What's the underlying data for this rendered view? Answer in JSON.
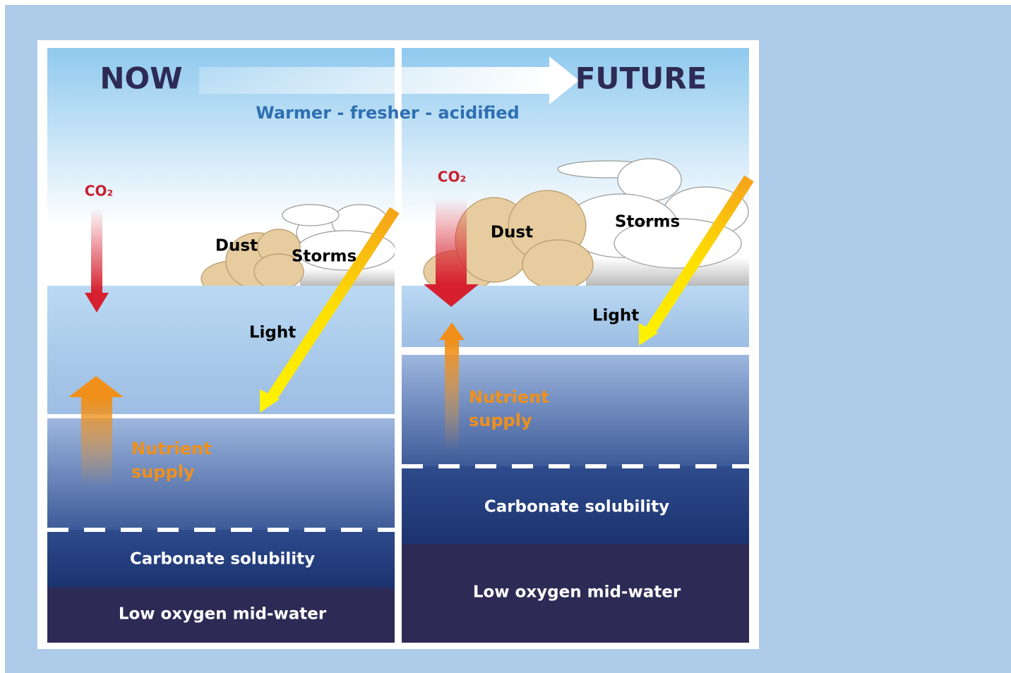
{
  "header": {
    "now": "NOW",
    "future": "FUTURE",
    "trend": "Warmer - fresher - acidified"
  },
  "panels": [
    {
      "co2": "CO₂",
      "dust": "Dust",
      "storms": "Storms",
      "light": "Light",
      "nutrient": [
        "Nutrient",
        "supply"
      ],
      "carbonate": "Carbonate solubility",
      "low_oxygen": "Low oxygen mid-water"
    },
    {
      "co2": "CO₂",
      "dust": "Dust",
      "storms": "Storms",
      "light": "Light",
      "nutrient": [
        "Nutrient",
        "supply"
      ],
      "carbonate": "Carbonate solubility",
      "low_oxygen": "Low oxygen mid-water"
    }
  ]
}
